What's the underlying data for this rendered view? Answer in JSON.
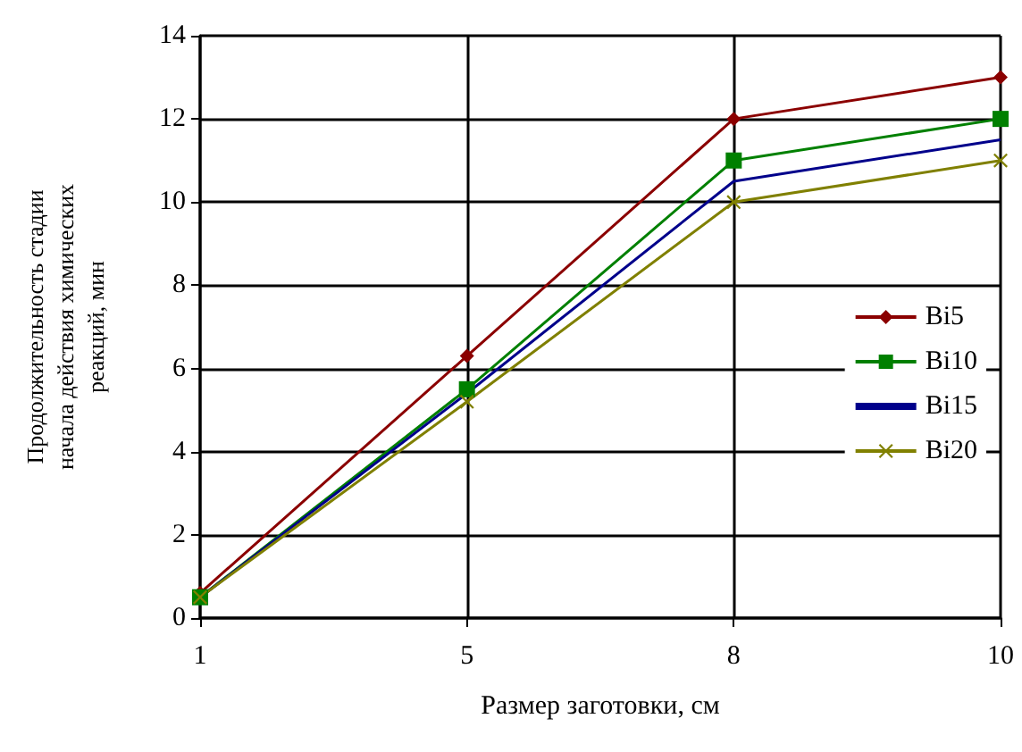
{
  "chart_data": {
    "type": "line",
    "xlabel": "Размер заготовки, см",
    "ylabel": "Продолжительность стадии\nначала действия химических\nреакций, мин",
    "categories": [
      "1",
      "5",
      "8",
      "10"
    ],
    "ylim": [
      0,
      14
    ],
    "yticks": [
      0,
      2,
      4,
      6,
      8,
      10,
      12,
      14
    ],
    "grid": true,
    "legend": "right",
    "series": [
      {
        "name": "Bi5",
        "color": "#8b0000",
        "marker": "diamond",
        "values": [
          0.6,
          6.3,
          12,
          13
        ]
      },
      {
        "name": "Bi10",
        "color": "#008000",
        "marker": "square",
        "values": [
          0.5,
          5.5,
          11,
          12
        ]
      },
      {
        "name": "Bi15",
        "color": "#00008b",
        "marker": "none",
        "values": [
          0.5,
          5.4,
          10.5,
          11.5
        ]
      },
      {
        "name": "Bi20",
        "color": "#808000",
        "marker": "cross",
        "values": [
          0.5,
          5.2,
          10,
          11
        ]
      }
    ]
  }
}
